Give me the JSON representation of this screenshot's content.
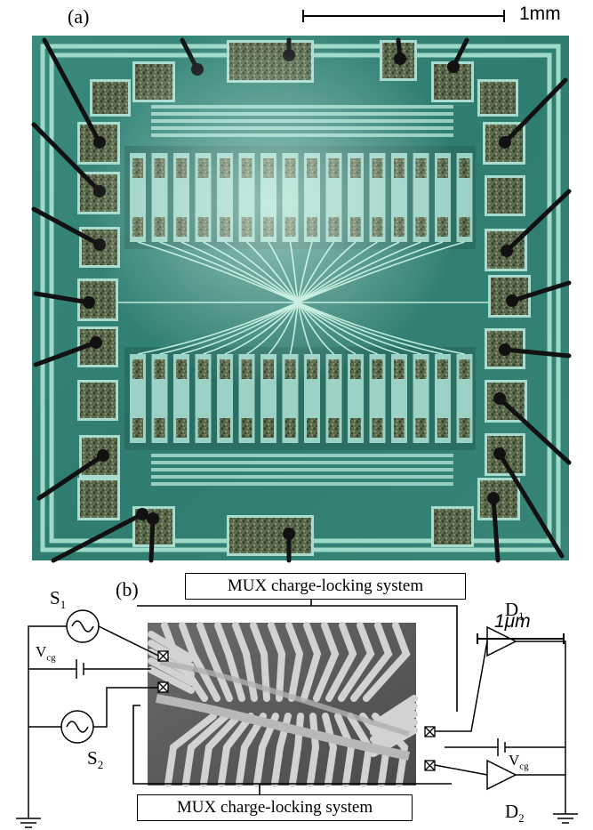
{
  "panel_a": {
    "label": "(a)",
    "scale_label": "1mm"
  },
  "panel_b": {
    "label": "(b)",
    "scale_label": "1μm",
    "mux_top": "MUX charge-locking system",
    "mux_bottom": "MUX charge-locking system",
    "sources": [
      {
        "base": "S",
        "sub": "1"
      },
      {
        "base": "S",
        "sub": "2"
      }
    ],
    "detectors": [
      {
        "base": "D",
        "sub": "1"
      },
      {
        "base": "D",
        "sub": "2"
      }
    ],
    "gate_left": {
      "base": "V",
      "sub": "cg"
    },
    "gate_right": {
      "base": "V",
      "sub": "cg"
    }
  },
  "colors": {
    "chip_background": "#2f7e72",
    "chip_metal": "#a9dccf",
    "pad_texture": "#4f5f44",
    "sem_background": "#5a5a5a",
    "sem_gate": "#c8c8c8"
  }
}
